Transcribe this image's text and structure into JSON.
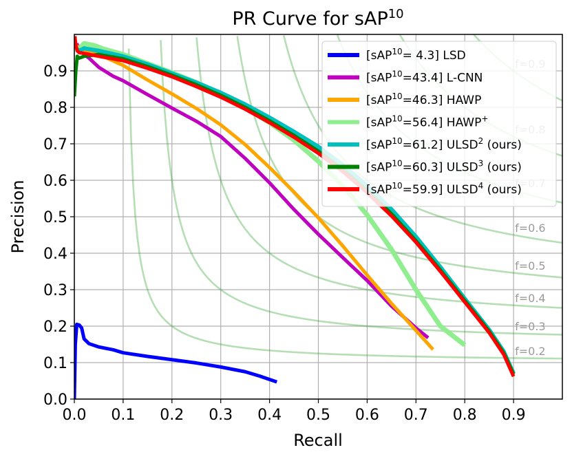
{
  "chart_data": {
    "type": "line",
    "title": "PR Curve for sAP",
    "title_superscript": "10",
    "xlabel": "Recall",
    "ylabel": "Precision",
    "xlim": [
      0,
      1.0
    ],
    "ylim": [
      0,
      1.0
    ],
    "grid": true,
    "legend_position": "upper right",
    "x_ticks": [
      "0.0",
      "0.1",
      "0.2",
      "0.3",
      "0.4",
      "0.5",
      "0.6",
      "0.7",
      "0.8",
      "0.9"
    ],
    "y_ticks": [
      "0.0",
      "0.1",
      "0.2",
      "0.3",
      "0.4",
      "0.5",
      "0.6",
      "0.7",
      "0.8",
      "0.9"
    ],
    "iso_f_labels": [
      "f=0.9",
      "f=0.8",
      "f=0.7",
      "f=0.6",
      "f=0.5",
      "f=0.4",
      "f=0.3",
      "f=0.2"
    ],
    "iso_f_values": [
      0.9,
      0.8,
      0.7,
      0.6,
      0.5,
      0.4,
      0.3,
      0.2
    ],
    "series": [
      {
        "name": "LSD",
        "legend_prefix": "[sAP",
        "legend_sup": "10",
        "legend_value": "= 4.3] LSD",
        "legend_name_sup": "",
        "legend_suffix": "",
        "color": "#0000ff",
        "width": 5,
        "points": [
          [
            0.0,
            0.0
          ],
          [
            0.002,
            0.15
          ],
          [
            0.005,
            0.205
          ],
          [
            0.01,
            0.203
          ],
          [
            0.015,
            0.195
          ],
          [
            0.02,
            0.165
          ],
          [
            0.03,
            0.152
          ],
          [
            0.05,
            0.143
          ],
          [
            0.08,
            0.135
          ],
          [
            0.1,
            0.127
          ],
          [
            0.15,
            0.117
          ],
          [
            0.2,
            0.108
          ],
          [
            0.25,
            0.099
          ],
          [
            0.3,
            0.088
          ],
          [
            0.35,
            0.075
          ],
          [
            0.38,
            0.063
          ],
          [
            0.415,
            0.047
          ]
        ]
      },
      {
        "name": "L-CNN",
        "legend_prefix": "[sAP",
        "legend_sup": "10",
        "legend_value": "=43.4] L-CNN",
        "legend_name_sup": "",
        "legend_suffix": "",
        "color": "#bf00bf",
        "width": 5,
        "points": [
          [
            0.005,
            0.975
          ],
          [
            0.01,
            0.96
          ],
          [
            0.02,
            0.945
          ],
          [
            0.03,
            0.935
          ],
          [
            0.05,
            0.91
          ],
          [
            0.08,
            0.885
          ],
          [
            0.1,
            0.873
          ],
          [
            0.15,
            0.835
          ],
          [
            0.2,
            0.798
          ],
          [
            0.25,
            0.762
          ],
          [
            0.3,
            0.72
          ],
          [
            0.35,
            0.66
          ],
          [
            0.4,
            0.593
          ],
          [
            0.45,
            0.52
          ],
          [
            0.5,
            0.452
          ],
          [
            0.55,
            0.388
          ],
          [
            0.6,
            0.325
          ],
          [
            0.65,
            0.255
          ],
          [
            0.7,
            0.195
          ],
          [
            0.725,
            0.168
          ]
        ]
      },
      {
        "name": "HAWP",
        "legend_prefix": "[sAP",
        "legend_sup": "10",
        "legend_value": "=46.3] HAWP",
        "legend_name_sup": "",
        "legend_suffix": "",
        "color": "#ffa500",
        "width": 5,
        "points": [
          [
            0.005,
            0.97
          ],
          [
            0.01,
            0.96
          ],
          [
            0.02,
            0.955
          ],
          [
            0.05,
            0.945
          ],
          [
            0.1,
            0.915
          ],
          [
            0.15,
            0.875
          ],
          [
            0.2,
            0.837
          ],
          [
            0.25,
            0.797
          ],
          [
            0.3,
            0.752
          ],
          [
            0.35,
            0.698
          ],
          [
            0.4,
            0.635
          ],
          [
            0.45,
            0.568
          ],
          [
            0.5,
            0.497
          ],
          [
            0.55,
            0.42
          ],
          [
            0.6,
            0.34
          ],
          [
            0.65,
            0.262
          ],
          [
            0.7,
            0.188
          ],
          [
            0.735,
            0.136
          ]
        ]
      },
      {
        "name": "HAWP",
        "legend_prefix": "[sAP",
        "legend_sup": "10",
        "legend_value": "=56.4] HAWP",
        "legend_name_sup": "+",
        "legend_suffix": "",
        "color": "#90ee90",
        "width": 7,
        "points": [
          [
            0.005,
            0.95
          ],
          [
            0.01,
            0.96
          ],
          [
            0.02,
            0.975
          ],
          [
            0.04,
            0.97
          ],
          [
            0.06,
            0.96
          ],
          [
            0.1,
            0.945
          ],
          [
            0.15,
            0.92
          ],
          [
            0.2,
            0.895
          ],
          [
            0.25,
            0.868
          ],
          [
            0.3,
            0.838
          ],
          [
            0.35,
            0.8
          ],
          [
            0.4,
            0.758
          ],
          [
            0.45,
            0.71
          ],
          [
            0.5,
            0.652
          ],
          [
            0.55,
            0.585
          ],
          [
            0.6,
            0.505
          ],
          [
            0.65,
            0.41
          ],
          [
            0.7,
            0.3
          ],
          [
            0.75,
            0.2
          ],
          [
            0.8,
            0.148
          ]
        ]
      },
      {
        "name": "ULSD",
        "legend_prefix": "[sAP",
        "legend_sup": "10",
        "legend_value": "=61.2] ULSD",
        "legend_name_sup": "2",
        "legend_suffix": " (ours)",
        "color": "#00bfbf",
        "width": 6,
        "points": [
          [
            0.005,
            0.96
          ],
          [
            0.01,
            0.955
          ],
          [
            0.02,
            0.962
          ],
          [
            0.05,
            0.955
          ],
          [
            0.1,
            0.94
          ],
          [
            0.15,
            0.918
          ],
          [
            0.2,
            0.893
          ],
          [
            0.25,
            0.868
          ],
          [
            0.3,
            0.84
          ],
          [
            0.35,
            0.808
          ],
          [
            0.4,
            0.772
          ],
          [
            0.45,
            0.733
          ],
          [
            0.5,
            0.692
          ],
          [
            0.55,
            0.642
          ],
          [
            0.6,
            0.585
          ],
          [
            0.65,
            0.52
          ],
          [
            0.7,
            0.445
          ],
          [
            0.75,
            0.362
          ],
          [
            0.8,
            0.275
          ],
          [
            0.85,
            0.19
          ],
          [
            0.88,
            0.13
          ],
          [
            0.9,
            0.07
          ]
        ]
      },
      {
        "name": "ULSD",
        "legend_prefix": "[sAP",
        "legend_sup": "10",
        "legend_value": "=60.3] ULSD",
        "legend_name_sup": "3",
        "legend_suffix": " (ours)",
        "color": "#008000",
        "width": 5,
        "points": [
          [
            0.0,
            0.83
          ],
          [
            0.003,
            0.9
          ],
          [
            0.006,
            0.94
          ],
          [
            0.01,
            0.935
          ],
          [
            0.02,
            0.94
          ],
          [
            0.05,
            0.945
          ],
          [
            0.1,
            0.933
          ],
          [
            0.15,
            0.912
          ],
          [
            0.2,
            0.888
          ],
          [
            0.25,
            0.862
          ],
          [
            0.3,
            0.833
          ],
          [
            0.35,
            0.8
          ],
          [
            0.4,
            0.763
          ],
          [
            0.45,
            0.723
          ],
          [
            0.5,
            0.68
          ],
          [
            0.55,
            0.63
          ],
          [
            0.6,
            0.572
          ],
          [
            0.65,
            0.508
          ],
          [
            0.7,
            0.434
          ],
          [
            0.75,
            0.354
          ],
          [
            0.8,
            0.27
          ],
          [
            0.85,
            0.186
          ],
          [
            0.88,
            0.126
          ],
          [
            0.9,
            0.068
          ]
        ]
      },
      {
        "name": "ULSD",
        "legend_prefix": "[sAP",
        "legend_sup": "10",
        "legend_value": "=59.9] ULSD",
        "legend_name_sup": "4",
        "legend_suffix": " (ours)",
        "color": "#ff0000",
        "width": 5,
        "points": [
          [
            0.001,
            0.995
          ],
          [
            0.003,
            0.97
          ],
          [
            0.006,
            0.955
          ],
          [
            0.01,
            0.95
          ],
          [
            0.02,
            0.948
          ],
          [
            0.05,
            0.94
          ],
          [
            0.1,
            0.928
          ],
          [
            0.15,
            0.907
          ],
          [
            0.2,
            0.884
          ],
          [
            0.25,
            0.857
          ],
          [
            0.3,
            0.828
          ],
          [
            0.35,
            0.795
          ],
          [
            0.4,
            0.758
          ],
          [
            0.45,
            0.718
          ],
          [
            0.5,
            0.674
          ],
          [
            0.55,
            0.624
          ],
          [
            0.6,
            0.566
          ],
          [
            0.65,
            0.502
          ],
          [
            0.7,
            0.43
          ],
          [
            0.75,
            0.35
          ],
          [
            0.8,
            0.266
          ],
          [
            0.85,
            0.182
          ],
          [
            0.88,
            0.122
          ],
          [
            0.9,
            0.062
          ]
        ]
      }
    ]
  }
}
